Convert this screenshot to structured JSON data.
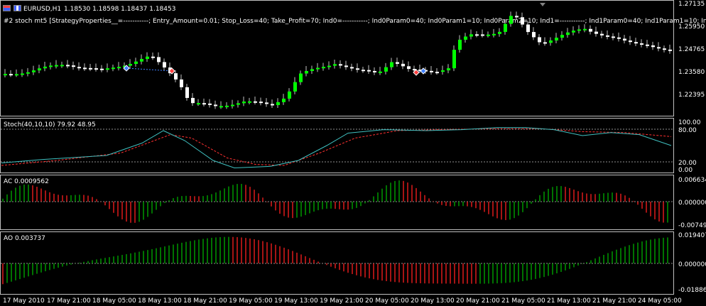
{
  "colors": {
    "background": "#000000",
    "frame": "#c0c0c0",
    "bull_candle": "#00ff00",
    "bear_candle": "#ffffff",
    "stoch_main": "#3fc0c0",
    "stoch_signal": "#ff3030",
    "osc_up": "#00b000",
    "osc_down": "#ff2020",
    "level_line": "#c0c0c0",
    "buy_marker": "#ff4040",
    "sell_marker": "#4080ff"
  },
  "price_pane": {
    "icon": "chart-window-icon",
    "symbol_label": "EURUSD,H1",
    "ohlc": "1.18530 1.18598 1.18437 1.18453",
    "strategy_label": "#2 stoch mt5 [StrategyProperties__=-----------; Entry_Amount=0.01; Stop_Loss=40; Take_Profit=70; Ind0=-----------; Ind0Param0=40; Ind0Param1=10; Ind0Param2=10; Ind1=-----------; Ind1Param0=40; Ind1Param1=10; Ind",
    "y_ticks": [
      "1.27135",
      "1.25950",
      "1.24765",
      "1.23580",
      "1.22395"
    ]
  },
  "stoch_pane": {
    "label": "Stoch(40,10,10) 79.92 48.95",
    "y_ticks": [
      "100.00",
      "80.00",
      "20.00",
      "0.00"
    ]
  },
  "ac_pane": {
    "label": "AC 0.0009562",
    "y_ticks": [
      "0.006634",
      "0.000000",
      "-0.007493"
    ]
  },
  "ao_pane": {
    "label": "AO 0.003737",
    "y_ticks": [
      "0.019407",
      "0.000000",
      "-0.018866"
    ]
  },
  "time_axis": [
    "17 May 2010",
    "17 May 21:00",
    "18 May 05:00",
    "18 May 13:00",
    "18 May 21:00",
    "19 May 05:00",
    "19 May 13:00",
    "19 May 21:00",
    "20 May 05:00",
    "20 May 13:00",
    "20 May 21:00",
    "21 May 05:00",
    "21 May 13:00",
    "21 May 21:00",
    "24 May 05:00"
  ]
}
